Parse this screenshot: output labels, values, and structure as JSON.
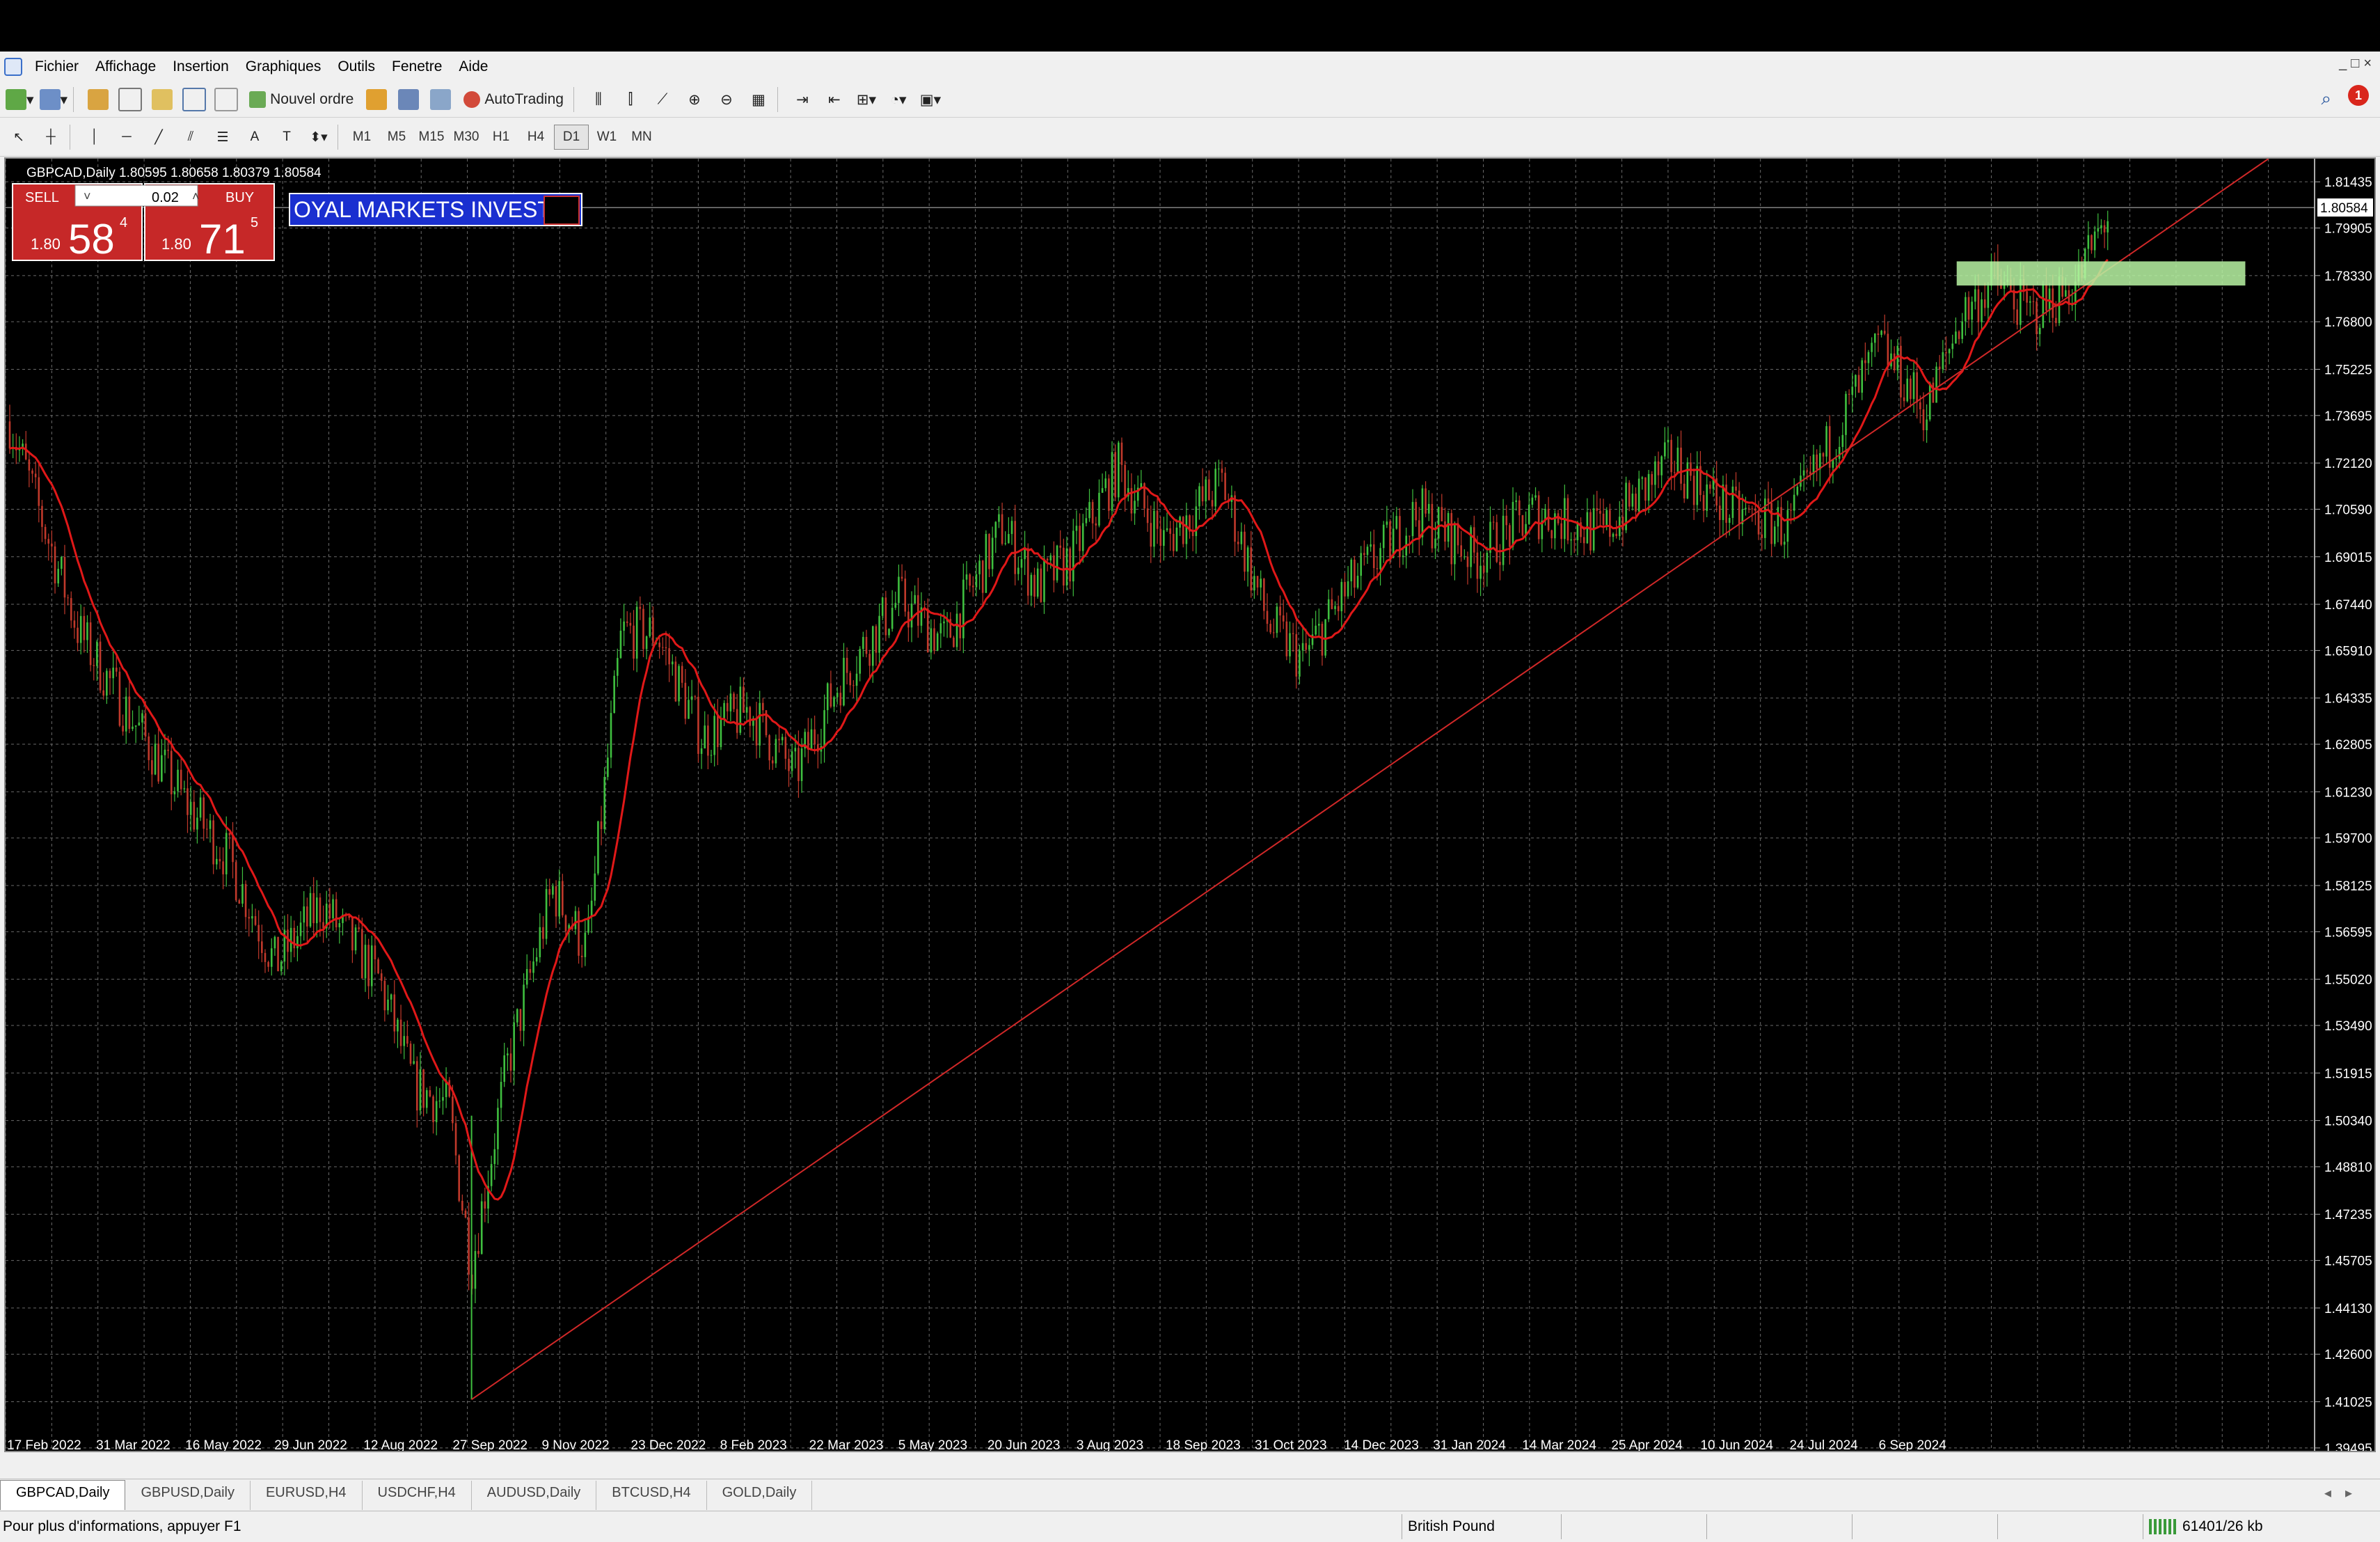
{
  "menu": [
    "Fichier",
    "Affichage",
    "Insertion",
    "Graphiques",
    "Outils",
    "Fenetre",
    "Aide"
  ],
  "toolbar": {
    "new_order": "Nouvel ordre",
    "autotrading": "AutoTrading"
  },
  "timeframes": [
    "M1",
    "M5",
    "M15",
    "M30",
    "H1",
    "H4",
    "D1",
    "W1",
    "MN"
  ],
  "active_timeframe": "D1",
  "chart": {
    "header": "GBPCAD,Daily  1.80595 1.80658 1.80379 1.80584",
    "current_price": "1.80584",
    "banner": "OYAL MARKETS INVEST"
  },
  "trade_panel": {
    "sell_label": "SELL",
    "buy_label": "BUY",
    "lot": "0.02",
    "sell_prefix": "1.80",
    "sell_big": "58",
    "sell_sup": "4",
    "buy_prefix": "1.80",
    "buy_big": "71",
    "buy_sup": "5"
  },
  "chart_data": {
    "type": "candlestick",
    "symbol": "GBPCAD",
    "timeframe": "Daily",
    "ylim": [
      1.394,
      1.822
    ],
    "y_ticks": [
      "1.81435",
      "1.79905",
      "1.78330",
      "1.76800",
      "1.75225",
      "1.73695",
      "1.72120",
      "1.70590",
      "1.69015",
      "1.67440",
      "1.65910",
      "1.64335",
      "1.62805",
      "1.61230",
      "1.59700",
      "1.58125",
      "1.56595",
      "1.55020",
      "1.53490",
      "1.51915",
      "1.50340",
      "1.48810",
      "1.47235",
      "1.45705",
      "1.44130",
      "1.42600",
      "1.41025",
      "1.39495"
    ],
    "x_ticks": [
      "17 Feb 2022",
      "31 Mar 2022",
      "16 May 2022",
      "29 Jun 2022",
      "12 Aug 2022",
      "27 Sep 2022",
      "9 Nov 2022",
      "23 Dec 2022",
      "8 Feb 2023",
      "22 Mar 2023",
      "5 May 2023",
      "20 Jun 2023",
      "3 Aug 2023",
      "18 Sep 2023",
      "31 Oct 2023",
      "14 Dec 2023",
      "31 Jan 2024",
      "14 Mar 2024",
      "25 Apr 2024",
      "10 Jun 2024",
      "24 Jul 2024",
      "6 Sep 2024"
    ],
    "price_path": [
      [
        0,
        1.735
      ],
      [
        0.03,
        1.665
      ],
      [
        0.05,
        1.64
      ],
      [
        0.075,
        1.61
      ],
      [
        0.095,
        1.59
      ],
      [
        0.115,
        1.555
      ],
      [
        0.135,
        1.575
      ],
      [
        0.16,
        1.55
      ],
      [
        0.175,
        1.515
      ],
      [
        0.19,
        1.508
      ],
      [
        0.2,
        1.455
      ],
      [
        0.215,
        1.52
      ],
      [
        0.235,
        1.58
      ],
      [
        0.25,
        1.56
      ],
      [
        0.265,
        1.665
      ],
      [
        0.28,
        1.665
      ],
      [
        0.3,
        1.63
      ],
      [
        0.32,
        1.64
      ],
      [
        0.34,
        1.618
      ],
      [
        0.36,
        1.65
      ],
      [
        0.385,
        1.676
      ],
      [
        0.405,
        1.662
      ],
      [
        0.43,
        1.7
      ],
      [
        0.445,
        1.68
      ],
      [
        0.46,
        1.69
      ],
      [
        0.48,
        1.72
      ],
      [
        0.5,
        1.695
      ],
      [
        0.525,
        1.715
      ],
      [
        0.545,
        1.668
      ],
      [
        0.56,
        1.656
      ],
      [
        0.58,
        1.68
      ],
      [
        0.61,
        1.705
      ],
      [
        0.635,
        1.69
      ],
      [
        0.66,
        1.705
      ],
      [
        0.69,
        1.698
      ],
      [
        0.72,
        1.722
      ],
      [
        0.745,
        1.705
      ],
      [
        0.77,
        1.7
      ],
      [
        0.79,
        1.73
      ],
      [
        0.81,
        1.76
      ],
      [
        0.83,
        1.738
      ],
      [
        0.845,
        1.77
      ],
      [
        0.86,
        1.782
      ],
      [
        0.875,
        1.77
      ],
      [
        0.895,
        1.781
      ],
      [
        0.91,
        1.806
      ]
    ],
    "trendline": {
      "from": [
        "27 Sep 2022",
        1.411
      ],
      "to": [
        "beyond 6 Sep 2024",
        1.818
      ]
    },
    "zone": {
      "low": 1.78,
      "high": 1.788
    },
    "moving_average": "red"
  },
  "tabs": [
    "GBPCAD,Daily",
    "GBPUSD,Daily",
    "EURUSD,H4",
    "USDCHF,H4",
    "AUDUSD,Daily",
    "BTCUSD,H4",
    "GOLD,Daily"
  ],
  "active_tab": "GBPCAD,Daily",
  "status": {
    "help": "Pour plus d'informations, appuyer F1",
    "profile": "British Pound",
    "traffic": "61401/26 kb"
  }
}
